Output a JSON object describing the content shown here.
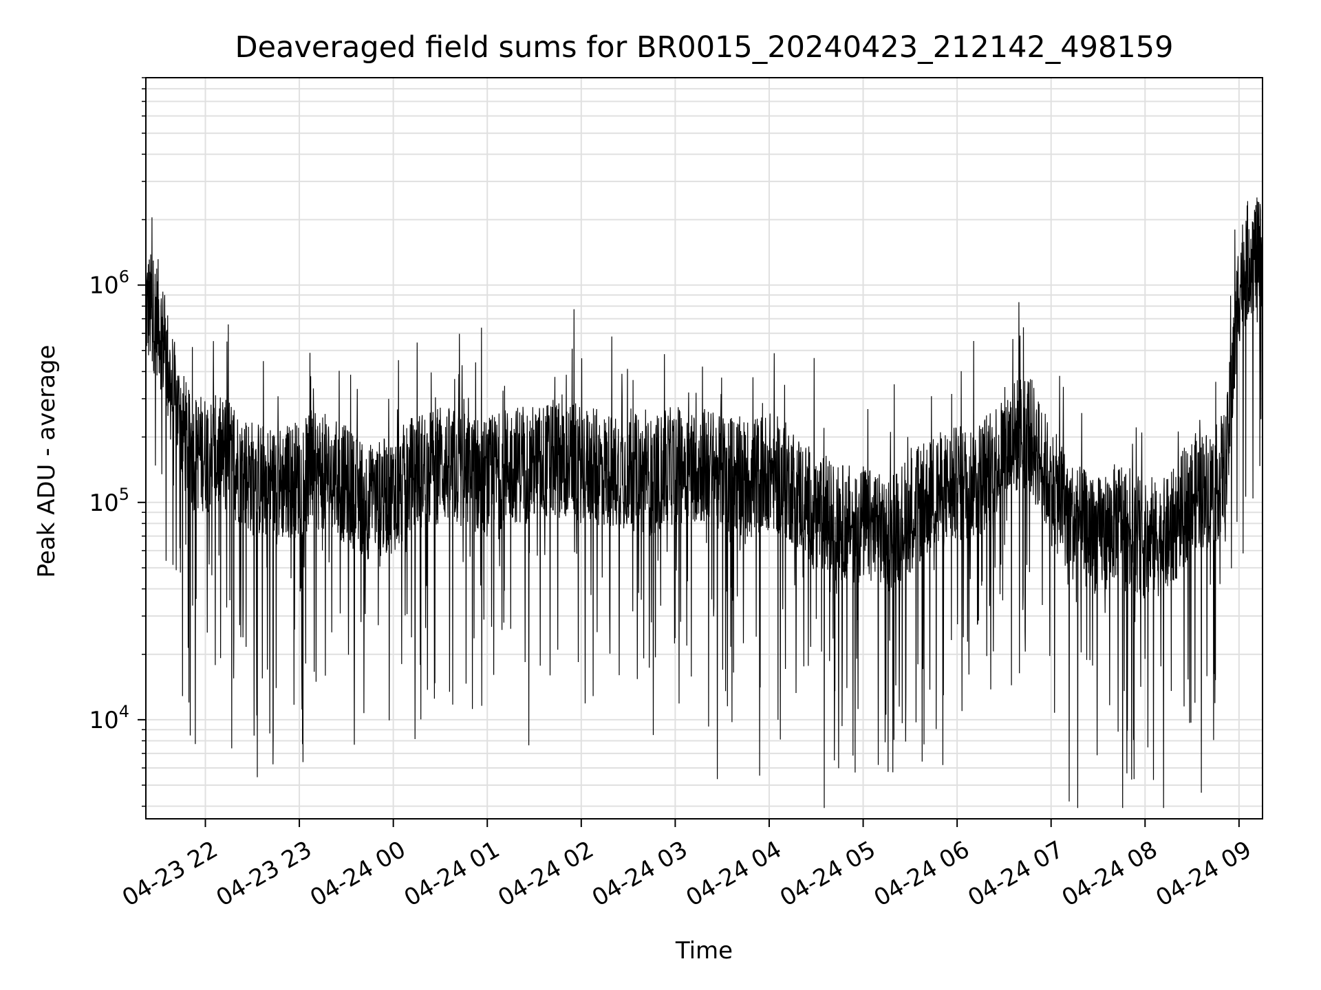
{
  "chart_data": {
    "type": "line",
    "title": "Deaveraged field sums for BR0015_20240423_212142_498159",
    "xlabel": "Time",
    "ylabel": "Peak ADU - average",
    "y_scale": "log",
    "ylim": [
      3500,
      9000000
    ],
    "xlim": [
      "2024-04-23 21:22",
      "2024-04-24 09:15"
    ],
    "grid": true,
    "line_color": "#000000",
    "x_tick_labels": [
      "04-23 22",
      "04-23 23",
      "04-24 00",
      "04-24 01",
      "04-24 02",
      "04-24 03",
      "04-24 04",
      "04-24 05",
      "04-24 06",
      "04-24 07",
      "04-24 08",
      "04-24 09"
    ],
    "y_ticks": [
      {
        "value": 10000,
        "base": "10",
        "exp": "4"
      },
      {
        "value": 100000,
        "base": "10",
        "exp": "5"
      },
      {
        "value": 1000000,
        "base": "10",
        "exp": "6"
      }
    ],
    "series": [
      {
        "x": [
          "2024-04-23 21:22",
          "2024-04-23 21:30",
          "2024-04-23 21:40",
          "2024-04-23 21:50",
          "2024-04-23 22:00",
          "2024-04-23 22:15",
          "2024-04-23 22:30",
          "2024-04-23 22:45",
          "2024-04-23 23:00",
          "2024-04-23 23:15",
          "2024-04-23 23:30",
          "2024-04-23 23:45",
          "2024-04-24 00:00",
          "2024-04-24 00:15",
          "2024-04-24 00:30",
          "2024-04-24 00:45",
          "2024-04-24 01:00",
          "2024-04-24 01:15",
          "2024-04-24 01:30",
          "2024-04-24 01:45",
          "2024-04-24 02:00",
          "2024-04-24 02:15",
          "2024-04-24 02:30",
          "2024-04-24 02:45",
          "2024-04-24 03:00",
          "2024-04-24 03:15",
          "2024-04-24 03:30",
          "2024-04-24 03:45",
          "2024-04-24 04:00",
          "2024-04-24 04:15",
          "2024-04-24 04:30",
          "2024-04-24 04:45",
          "2024-04-24 05:00",
          "2024-04-24 05:15",
          "2024-04-24 05:30",
          "2024-04-24 05:45",
          "2024-04-24 06:00",
          "2024-04-24 06:15",
          "2024-04-24 06:30",
          "2024-04-24 06:45",
          "2024-04-24 07:00",
          "2024-04-24 07:15",
          "2024-04-24 07:30",
          "2024-04-24 07:45",
          "2024-04-24 08:00",
          "2024-04-24 08:15",
          "2024-04-24 08:30",
          "2024-04-24 08:45",
          "2024-04-24 08:52",
          "2024-04-24 09:00",
          "2024-04-24 09:07",
          "2024-04-24 09:15"
        ],
        "y": [
          800000,
          700000,
          300000,
          170000,
          170000,
          160000,
          130000,
          120000,
          130000,
          140000,
          120000,
          100000,
          110000,
          140000,
          150000,
          140000,
          130000,
          150000,
          150000,
          160000,
          150000,
          140000,
          140000,
          130000,
          150000,
          150000,
          140000,
          130000,
          140000,
          120000,
          90000,
          80000,
          80000,
          70000,
          90000,
          110000,
          120000,
          130000,
          180000,
          220000,
          120000,
          80000,
          70000,
          85000,
          65000,
          70000,
          110000,
          120000,
          150000,
          1000000,
          1400000,
          1300000
        ]
      }
    ]
  }
}
